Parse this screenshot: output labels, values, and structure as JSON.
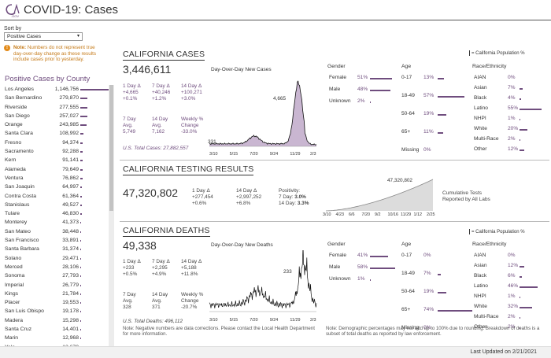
{
  "header": {
    "title": "COVID-19: Cases",
    "logo_text": "CA.GOV"
  },
  "sort": {
    "label": "Sort by",
    "value": "Positive Cases"
  },
  "note": {
    "label": "Note:",
    "text": "Numbers do not represent true day-over-day change as these results include cases prior to yesterday."
  },
  "counties": {
    "title": "Positive Cases by County",
    "max": 1146756,
    "items": [
      {
        "name": "Los Angeles",
        "value": "1,146,756",
        "n": 1146756
      },
      {
        "name": "San Bernardino",
        "value": "279,870",
        "n": 279870
      },
      {
        "name": "Riverside",
        "value": "277,555",
        "n": 277555
      },
      {
        "name": "San Diego",
        "value": "257,027",
        "n": 257027
      },
      {
        "name": "Orange",
        "value": "243,985",
        "n": 243985
      },
      {
        "name": "Santa Clara",
        "value": "108,992",
        "n": 108992
      },
      {
        "name": "Fresno",
        "value": "94,374",
        "n": 94374
      },
      {
        "name": "Sacramento",
        "value": "92,288",
        "n": 92288
      },
      {
        "name": "Kern",
        "value": "91,141",
        "n": 91141
      },
      {
        "name": "Alameda",
        "value": "79,649",
        "n": 79649
      },
      {
        "name": "Ventura",
        "value": "76,862",
        "n": 76862
      },
      {
        "name": "San Joaquin",
        "value": "64,997",
        "n": 64997
      },
      {
        "name": "Contra Costa",
        "value": "61,364",
        "n": 61364
      },
      {
        "name": "Stanislaus",
        "value": "49,527",
        "n": 49527
      },
      {
        "name": "Tulare",
        "value": "46,830",
        "n": 46830
      },
      {
        "name": "Monterey",
        "value": "41,373",
        "n": 41373
      },
      {
        "name": "San Mateo",
        "value": "38,448",
        "n": 38448
      },
      {
        "name": "San Francisco",
        "value": "33,891",
        "n": 33891
      },
      {
        "name": "Santa Barbara",
        "value": "31,374",
        "n": 31374
      },
      {
        "name": "Solano",
        "value": "29,471",
        "n": 29471
      },
      {
        "name": "Merced",
        "value": "28,106",
        "n": 28106
      },
      {
        "name": "Sonoma",
        "value": "27,793",
        "n": 27793
      },
      {
        "name": "Imperial",
        "value": "26,779",
        "n": 26779
      },
      {
        "name": "Kings",
        "value": "21,784",
        "n": 21784
      },
      {
        "name": "Placer",
        "value": "19,553",
        "n": 19553
      },
      {
        "name": "San Luis Obispo",
        "value": "19,178",
        "n": 19178
      },
      {
        "name": "Madera",
        "value": "15,298",
        "n": 15298
      },
      {
        "name": "Santa Cruz",
        "value": "14,401",
        "n": 14401
      },
      {
        "name": "Marin",
        "value": "12,968",
        "n": 12968
      },
      {
        "name": "Yolo",
        "value": "12,670",
        "n": 12670
      }
    ]
  },
  "cases": {
    "title": "CALIFORNIA CASES",
    "total": "3,446,611",
    "d1_label1": "1 Day Δ",
    "d1_v": "+4,665",
    "d1_p": "+0.1%",
    "d7_label1": "7 Day Δ",
    "d7_v": "+40,246",
    "d7_p": "+1.2%",
    "d14_label1": "14 Day Δ",
    "d14_v": "+100,271",
    "d14_p": "+3.0%",
    "avg7_label1": "7 Day",
    "avg7_label2": "Avg.",
    "avg7_v": "5,749",
    "avg14_label1": "14 Day",
    "avg14_label2": "Avg.",
    "avg14_v": "7,162",
    "wk_label1": "Weekly %",
    "wk_label2": "Change",
    "wk_v": "-33.0%",
    "us_total": "U.S. Total Cases: 27,882,557",
    "chart_title": "Day-Over-Day New Cases",
    "peak_label": "4,665",
    "start_label": "331",
    "ticks": [
      "3/10",
      "5/15",
      "7/20",
      "9/24",
      "11/29",
      "2/3"
    ]
  },
  "testing": {
    "title": "CALIFORNIA TESTING RESULTS",
    "total": "47,320,802",
    "d1_label": "1 Day Δ",
    "d1_v": "+277,454",
    "d1_p": "+0.6%",
    "d14_label": "14 Day Δ",
    "d14_v": "+2,997,252",
    "d14_p": "+6.8%",
    "pos_label": "Positivity:",
    "pos_7_label": "7 Day:",
    "pos_7": "3.0%",
    "pos_14_label": "14 Day:",
    "pos_14": "3.3%",
    "chart_peak": "47,320,802",
    "chart_caption1": "Cumulative Tests",
    "chart_caption2": "Reported by All Labs",
    "ticks": [
      "3/10",
      "4/23",
      "6/6",
      "7/20",
      "9/2",
      "10/16",
      "11/29",
      "1/12",
      "2/25"
    ]
  },
  "deaths": {
    "title": "CALIFORNIA DEATHS",
    "total": "49,338",
    "d1_label1": "1 Day Δ",
    "d1_v": "+233",
    "d1_p": "+0.5%",
    "d7_label1": "7 Day Δ",
    "d7_v": "+2,295",
    "d7_p": "+4.9%",
    "d14_label1": "14 Day Δ",
    "d14_v": "+5,188",
    "d14_p": "+11.8%",
    "avg7_label1": "7 Day",
    "avg7_label2": "Avg.",
    "avg7_v": "328",
    "avg14_label1": "14 Day",
    "avg14_label2": "Avg.",
    "avg14_v": "371",
    "wk_label1": "Weekly %",
    "wk_label2": "Change",
    "wk_v": "-20.7%",
    "us_total": "U.S. Total Deaths: 496,112",
    "chart_title": "Day-Over-Day New Deaths",
    "peak_label": "233",
    "ticks": [
      "3/10",
      "5/15",
      "7/20",
      "9/24",
      "11/29",
      "2/3"
    ],
    "footnote": "Note: Negative numbers are data corrections. Please contact the Local Health Department for more information."
  },
  "legend": {
    "text": "= California Population %"
  },
  "demo_cases": {
    "gender_h": "Gender",
    "age_h": "Age",
    "race_h": "Race/Ethnicity",
    "gender": [
      {
        "l": "Female",
        "v": "51%",
        "n": 51
      },
      {
        "l": "Male",
        "v": "48%",
        "n": 48
      },
      {
        "l": "Unknown",
        "v": "2%",
        "n": 2
      }
    ],
    "age": [
      {
        "l": "0-17",
        "v": "13%",
        "n": 13
      },
      {
        "l": "18-49",
        "v": "57%",
        "n": 57
      },
      {
        "l": "50-64",
        "v": "19%",
        "n": 19
      },
      {
        "l": "65+",
        "v": "11%",
        "n": 11
      },
      {
        "l": "Missing",
        "v": "0%",
        "n": 0
      }
    ],
    "race": [
      {
        "l": "AIAN",
        "v": "0%",
        "n": 0
      },
      {
        "l": "Asian",
        "v": "7%",
        "n": 7
      },
      {
        "l": "Black",
        "v": "4%",
        "n": 4
      },
      {
        "l": "Latino",
        "v": "55%",
        "n": 55
      },
      {
        "l": "NHPI",
        "v": "1%",
        "n": 1
      },
      {
        "l": "White",
        "v": "20%",
        "n": 20
      },
      {
        "l": "Multi-Race",
        "v": "2%",
        "n": 2
      },
      {
        "l": "Other",
        "v": "12%",
        "n": 12
      }
    ]
  },
  "demo_deaths": {
    "gender_h": "Gender",
    "age_h": "Age",
    "race_h": "Race/Ethnicity",
    "gender": [
      {
        "l": "Female",
        "v": "41%",
        "n": 41
      },
      {
        "l": "Male",
        "v": "58%",
        "n": 58
      },
      {
        "l": "Unknown",
        "v": "1%",
        "n": 1
      }
    ],
    "age": [
      {
        "l": "0-17",
        "v": "0%",
        "n": 0
      },
      {
        "l": "18-49",
        "v": "7%",
        "n": 7
      },
      {
        "l": "50-64",
        "v": "19%",
        "n": 19
      },
      {
        "l": "65+",
        "v": "74%",
        "n": 74
      },
      {
        "l": "Missing",
        "v": "0%",
        "n": 0
      }
    ],
    "race": [
      {
        "l": "AIAN",
        "v": "0%",
        "n": 0
      },
      {
        "l": "Asian",
        "v": "12%",
        "n": 12
      },
      {
        "l": "Black",
        "v": "6%",
        "n": 6
      },
      {
        "l": "Latino",
        "v": "46%",
        "n": 46
      },
      {
        "l": "NHPI",
        "v": "1%",
        "n": 1
      },
      {
        "l": "White",
        "v": "32%",
        "n": 32
      },
      {
        "l": "Multi-Race",
        "v": "2%",
        "n": 2
      },
      {
        "l": "Other",
        "v": "2%",
        "n": 2
      }
    ],
    "footnote": "Note: Demographic percentages may not add up to 100% due to rounding. Breakdown of deaths is a subset of total deaths as reported by law enforcement."
  },
  "footer": {
    "updated": "Last Updated on 2/21/2021"
  }
}
